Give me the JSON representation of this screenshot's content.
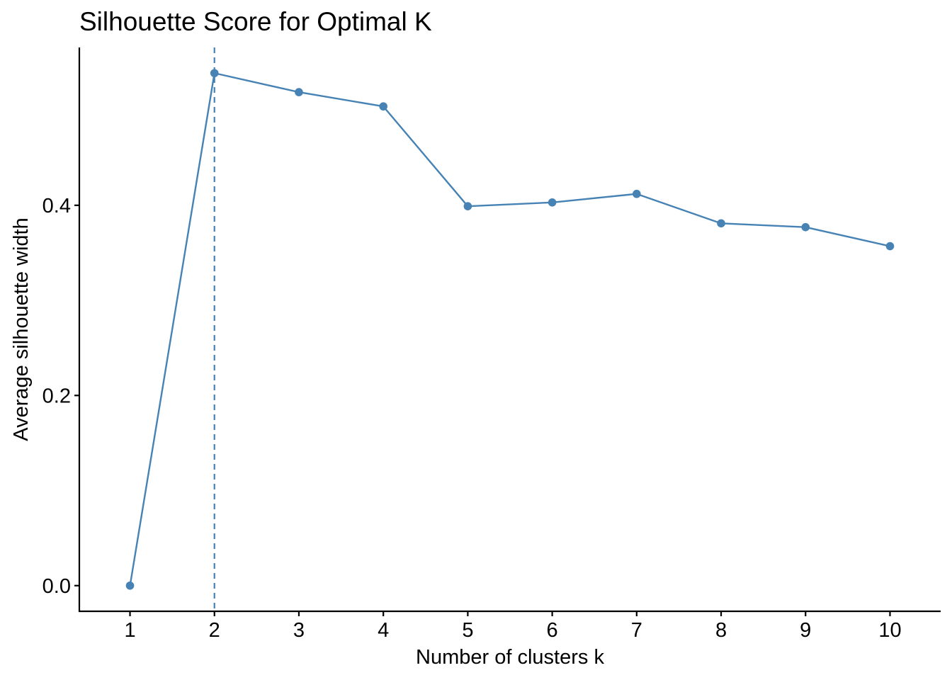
{
  "chart_data": {
    "type": "line",
    "title": "Silhouette Score for Optimal K",
    "xlabel": "Number of clusters k",
    "ylabel": "Average silhouette width",
    "x": [
      1,
      2,
      3,
      4,
      5,
      6,
      7,
      8,
      9,
      10
    ],
    "series": [
      {
        "values": [
          0.0,
          0.539,
          0.519,
          0.504,
          0.399,
          0.403,
          0.412,
          0.381,
          0.377,
          0.357
        ]
      }
    ],
    "xlim": [
      0.4,
      10.6
    ],
    "ylim": [
      -0.027,
      0.566
    ],
    "yticks": [
      0.0,
      0.2,
      0.4
    ],
    "ytick_labels": [
      "0.0",
      "0.2",
      "0.4"
    ],
    "xticks": [
      1,
      2,
      3,
      4,
      5,
      6,
      7,
      8,
      9,
      10
    ],
    "xtick_labels": [
      "1",
      "2",
      "3",
      "4",
      "5",
      "6",
      "7",
      "8",
      "9",
      "10"
    ],
    "optimal_k": 2,
    "grid": false,
    "legend": "none",
    "colors": {
      "series": "#4682b4",
      "axis": "#000000"
    }
  }
}
